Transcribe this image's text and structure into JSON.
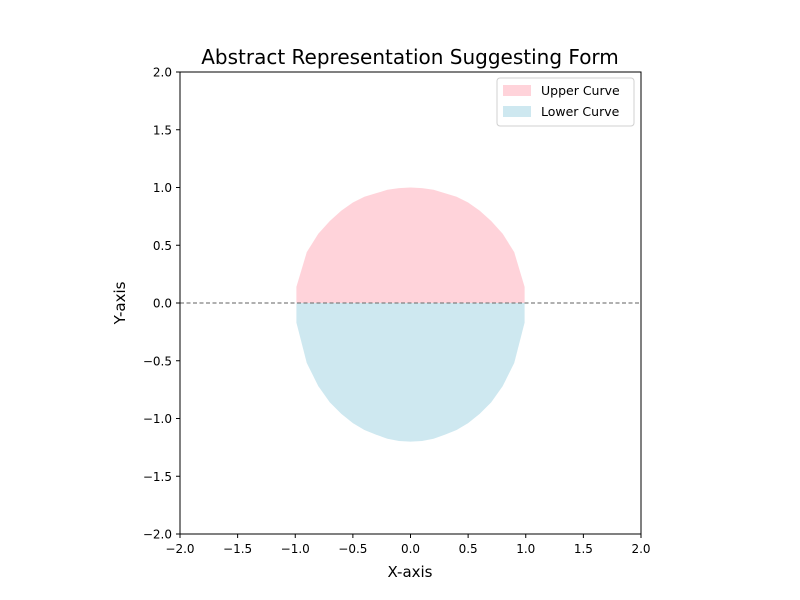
{
  "chart_data": {
    "type": "area",
    "title": "Abstract Representation Suggesting Form",
    "xlabel": "X-axis",
    "ylabel": "Y-axis",
    "xlim": [
      -2.0,
      2.0
    ],
    "ylim": [
      -2.0,
      2.0
    ],
    "xticks": [
      -2.0,
      -1.5,
      -1.0,
      -0.5,
      0.0,
      0.5,
      1.0,
      1.5,
      2.0
    ],
    "yticks": [
      -2.0,
      -1.5,
      -1.0,
      -0.5,
      0.0,
      0.5,
      1.0,
      1.5,
      2.0
    ],
    "xtick_labels": [
      "−2.0",
      "−1.5",
      "−1.0",
      "−0.5",
      "0.0",
      "0.5",
      "1.0",
      "1.5",
      "2.0"
    ],
    "ytick_labels": [
      "−2.0",
      "−1.5",
      "−1.0",
      "−0.5",
      "0.0",
      "0.5",
      "1.0",
      "1.5",
      "2.0"
    ],
    "grid": false,
    "legend_position": "top-right",
    "reference_line": {
      "y": 0.0,
      "style": "dashed",
      "color": "#808080"
    },
    "series": [
      {
        "name": "Upper Curve",
        "color": "#ffb6c1",
        "opacity": 0.6,
        "x": [
          -0.99,
          -0.9,
          -0.8,
          -0.7,
          -0.6,
          -0.5,
          -0.4,
          -0.3,
          -0.2,
          -0.1,
          0.0,
          0.1,
          0.2,
          0.3,
          0.4,
          0.5,
          0.6,
          0.7,
          0.8,
          0.9,
          0.99
        ],
        "y_top": [
          0.14,
          0.44,
          0.6,
          0.71,
          0.8,
          0.87,
          0.92,
          0.95,
          0.98,
          0.995,
          1.0,
          0.995,
          0.98,
          0.95,
          0.92,
          0.87,
          0.8,
          0.71,
          0.6,
          0.44,
          0.14
        ],
        "y_bottom": 0.0
      },
      {
        "name": "Lower Curve",
        "color": "#add8e6",
        "opacity": 0.6,
        "x": [
          -0.99,
          -0.9,
          -0.8,
          -0.7,
          -0.6,
          -0.5,
          -0.4,
          -0.3,
          -0.2,
          -0.1,
          0.0,
          0.1,
          0.2,
          0.3,
          0.4,
          0.5,
          0.6,
          0.7,
          0.8,
          0.9,
          0.99
        ],
        "y_top": 0.0,
        "y_bottom": [
          -0.17,
          -0.52,
          -0.72,
          -0.86,
          -0.96,
          -1.04,
          -1.1,
          -1.14,
          -1.175,
          -1.195,
          -1.2,
          -1.195,
          -1.175,
          -1.14,
          -1.1,
          -1.04,
          -0.96,
          -0.86,
          -0.72,
          -0.52,
          -0.17
        ]
      }
    ]
  }
}
